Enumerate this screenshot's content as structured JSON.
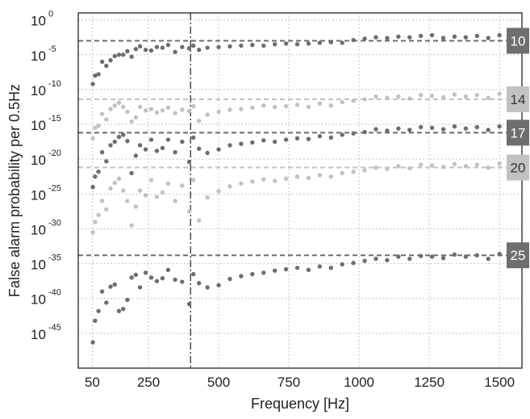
{
  "chart_data": {
    "type": "scatter",
    "title": "",
    "xlabel": "Frequency [Hz]",
    "ylabel": "False alarm probability per 0.5Hz",
    "xlim": [
      0,
      1580
    ],
    "ylim_log10": [
      -50,
      1
    ],
    "log_y": true,
    "grid": true,
    "x_ticks": [
      50,
      250,
      500,
      750,
      1000,
      1250,
      1500
    ],
    "y_ticks": [
      {
        "base": "10",
        "exp": "0",
        "value": 0
      },
      {
        "base": "10",
        "exp": "-5",
        "value": -5
      },
      {
        "base": "10",
        "exp": "-10",
        "value": -10
      },
      {
        "base": "10",
        "exp": "-15",
        "value": -15
      },
      {
        "base": "10",
        "exp": "-20",
        "value": -20
      },
      {
        "base": "10",
        "exp": "-25",
        "value": -25
      },
      {
        "base": "10",
        "exp": "-30",
        "value": -30
      },
      {
        "base": "10",
        "exp": "-35",
        "value": -35
      },
      {
        "base": "10",
        "exp": "-40",
        "value": -40
      },
      {
        "base": "10",
        "exp": "-45",
        "value": -45
      }
    ],
    "vertical_line_x": 400,
    "series": [
      {
        "label": "10",
        "threshold_log10": -3,
        "color": "#6e6e6e",
        "badge_text_color": "#ffffff",
        "x": [
          52,
          60,
          72,
          85,
          100,
          115,
          130,
          145,
          160,
          175,
          190,
          205,
          220,
          240,
          260,
          280,
          300,
          320,
          345,
          370,
          395,
          410,
          430,
          460,
          500,
          540,
          580,
          620,
          660,
          700,
          740,
          780,
          820,
          860,
          900,
          940,
          980,
          1020,
          1060,
          1100,
          1140,
          1180,
          1220,
          1260,
          1300,
          1340,
          1380,
          1420,
          1460,
          1500
        ],
        "y": [
          -9.2,
          -8.0,
          -7.8,
          -6.0,
          -6.6,
          -5.8,
          -5.2,
          -5.0,
          -5.0,
          -4.5,
          -5.3,
          -4.2,
          -3.8,
          -4.3,
          -4.4,
          -3.9,
          -4.0,
          -3.6,
          -4.6,
          -3.9,
          -4.1,
          -3.7,
          -4.3,
          -4.0,
          -3.9,
          -3.8,
          -3.7,
          -3.6,
          -3.7,
          -3.5,
          -3.4,
          -3.5,
          -3.4,
          -3.3,
          -3.2,
          -3.3,
          -2.9,
          -2.7,
          -2.5,
          -2.6,
          -2.4,
          -2.5,
          -2.3,
          -2.2,
          -2.6,
          -2.4,
          -2.5,
          -2.3,
          -2.6,
          -2.2
        ]
      },
      {
        "label": "14",
        "threshold_log10": -11.4,
        "color": "#c2c2c2",
        "badge_text_color": "#333333",
        "x": [
          52,
          60,
          72,
          85,
          100,
          115,
          130,
          145,
          160,
          175,
          190,
          205,
          220,
          240,
          260,
          280,
          300,
          320,
          345,
          370,
          395,
          410,
          430,
          460,
          500,
          540,
          580,
          620,
          660,
          700,
          740,
          780,
          820,
          860,
          900,
          940,
          980,
          1020,
          1060,
          1100,
          1140,
          1180,
          1220,
          1260,
          1300,
          1340,
          1380,
          1420,
          1460,
          1500
        ],
        "y": [
          -17.0,
          -15.5,
          -15.2,
          -13.5,
          -14.3,
          -12.8,
          -12.3,
          -11.9,
          -12.5,
          -13.2,
          -14.6,
          -14.0,
          -12.5,
          -13.0,
          -12.8,
          -13.3,
          -13.0,
          -12.6,
          -13.4,
          -12.9,
          -13.1,
          -12.4,
          -14.5,
          -13.6,
          -13.2,
          -12.9,
          -12.8,
          -12.6,
          -12.3,
          -12.5,
          -12.4,
          -12.2,
          -12.5,
          -12.0,
          -12.3,
          -11.8,
          -11.6,
          -11.4,
          -11.0,
          -11.2,
          -11.0,
          -11.3,
          -10.8,
          -10.9,
          -11.1,
          -10.7,
          -11.0,
          -10.8,
          -11.2,
          -10.6
        ]
      },
      {
        "label": "17",
        "threshold_log10": -16.2,
        "color": "#6e6e6e",
        "badge_text_color": "#ffffff",
        "x": [
          52,
          60,
          72,
          85,
          100,
          115,
          130,
          145,
          160,
          175,
          190,
          205,
          220,
          240,
          260,
          280,
          300,
          320,
          345,
          370,
          395,
          410,
          430,
          460,
          500,
          540,
          580,
          620,
          660,
          700,
          740,
          780,
          820,
          860,
          900,
          940,
          980,
          1020,
          1060,
          1100,
          1140,
          1180,
          1220,
          1260,
          1300,
          1340,
          1380,
          1420,
          1460,
          1500
        ],
        "y": [
          -24.0,
          -22.5,
          -21.8,
          -19.0,
          -20.3,
          -18.0,
          -17.5,
          -16.8,
          -16.5,
          -17.4,
          -22.0,
          -19.5,
          -18.0,
          -18.6,
          -17.2,
          -18.8,
          -18.4,
          -17.2,
          -19.0,
          -17.5,
          -20.4,
          -16.9,
          -18.5,
          -19.1,
          -18.6,
          -18.0,
          -17.8,
          -17.6,
          -17.3,
          -17.5,
          -17.2,
          -17.0,
          -17.1,
          -16.7,
          -16.9,
          -16.5,
          -16.3,
          -16.1,
          -15.7,
          -15.9,
          -15.6,
          -15.8,
          -15.4,
          -15.5,
          -15.7,
          -15.3,
          -15.6,
          -15.4,
          -15.8,
          -15.3
        ]
      },
      {
        "label": "20",
        "threshold_log10": -21.2,
        "color": "#c2c2c2",
        "badge_text_color": "#333333",
        "x": [
          52,
          60,
          72,
          85,
          100,
          115,
          130,
          145,
          160,
          175,
          190,
          205,
          220,
          240,
          260,
          280,
          300,
          320,
          345,
          370,
          395,
          410,
          430,
          460,
          500,
          540,
          580,
          620,
          660,
          700,
          740,
          780,
          820,
          860,
          900,
          940,
          980,
          1020,
          1060,
          1100,
          1140,
          1180,
          1220,
          1260,
          1300,
          1340,
          1380,
          1420,
          1460,
          1500
        ],
        "y": [
          -30.5,
          -29.0,
          -28.0,
          -26.0,
          -27.2,
          -24.2,
          -23.4,
          -22.8,
          -24.5,
          -26.0,
          -29.5,
          -26.8,
          -24.5,
          -25.2,
          -23.0,
          -25.4,
          -24.8,
          -23.5,
          -26.0,
          -23.8,
          -27.5,
          -23.0,
          -28.8,
          -25.5,
          -24.6,
          -23.9,
          -23.5,
          -23.2,
          -22.9,
          -23.1,
          -22.8,
          -22.5,
          -22.7,
          -22.3,
          -22.5,
          -22.0,
          -21.8,
          -21.6,
          -21.2,
          -21.4,
          -21.0,
          -21.3,
          -20.8,
          -20.9,
          -21.1,
          -20.7,
          -21.0,
          -20.8,
          -21.2,
          -20.6
        ]
      },
      {
        "label": "25",
        "threshold_log10": -33.8,
        "color": "#6e6e6e",
        "badge_text_color": "#ffffff",
        "x": [
          52,
          60,
          72,
          85,
          100,
          115,
          130,
          145,
          160,
          175,
          190,
          205,
          220,
          240,
          260,
          280,
          300,
          320,
          345,
          370,
          395,
          410,
          430,
          460,
          500,
          540,
          580,
          620,
          660,
          700,
          740,
          780,
          820,
          860,
          900,
          940,
          980,
          1020,
          1060,
          1100,
          1140,
          1180,
          1220,
          1260,
          1300,
          1340,
          1380,
          1420,
          1460,
          1500
        ],
        "y": [
          -46.3,
          -43.2,
          -41.8,
          -39.0,
          -40.6,
          -38.3,
          -38.0,
          -41.8,
          -41.5,
          -40.2,
          -37.0,
          -36.6,
          -38.4,
          -36.3,
          -37.0,
          -37.5,
          -37.1,
          -35.9,
          -37.3,
          -37.6,
          -40.8,
          -36.5,
          -37.8,
          -38.4,
          -38.1,
          -37.2,
          -36.8,
          -36.5,
          -36.3,
          -36.0,
          -35.8,
          -35.6,
          -35.9,
          -35.4,
          -35.6,
          -35.1,
          -34.9,
          -34.6,
          -34.3,
          -34.5,
          -34.0,
          -34.3,
          -33.9,
          -34.0,
          -34.2,
          -33.7,
          -34.0,
          -33.8,
          -34.3,
          -33.6
        ]
      }
    ]
  }
}
